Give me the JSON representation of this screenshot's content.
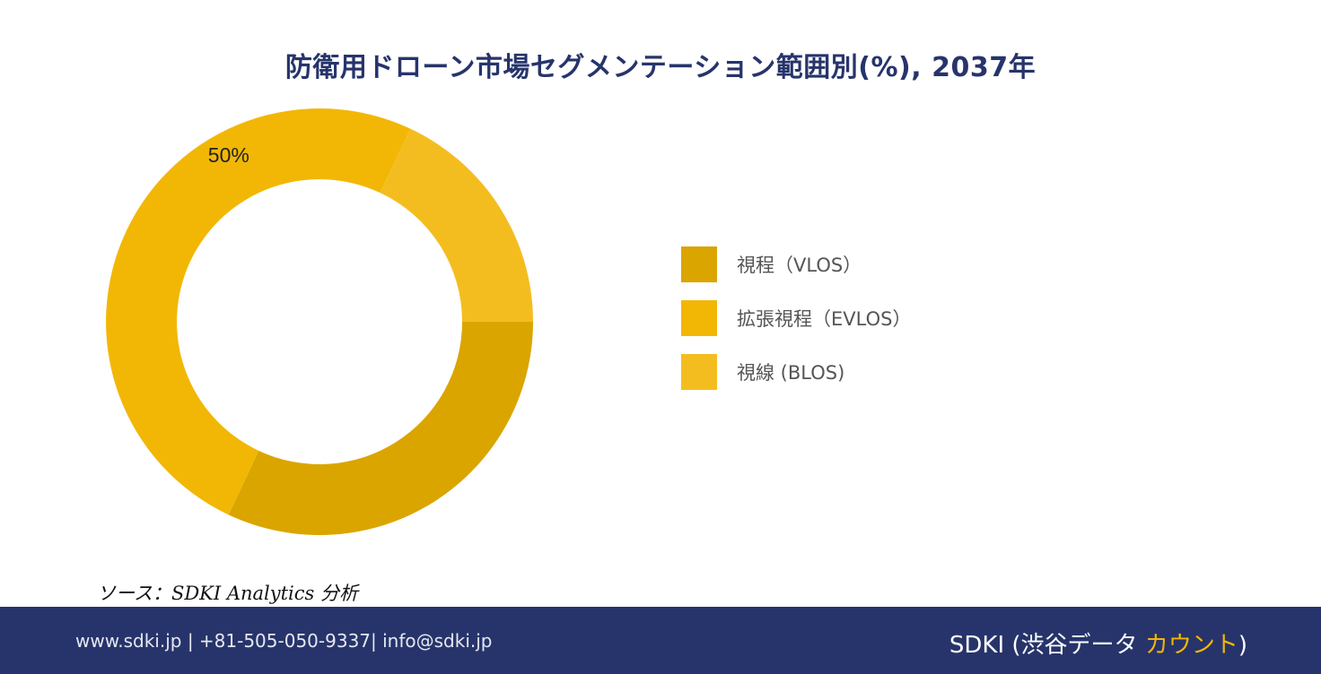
{
  "chart_data": {
    "type": "pie",
    "title": "防衛用ドローン市場セグメンテーション範囲別(%), 2037年",
    "categories": [
      "視程（VLOS）",
      "拡張視程（EVLOS）",
      "視線 (BLOS)"
    ],
    "values": [
      32,
      50,
      18
    ],
    "data_labels": [
      "",
      "50%",
      ""
    ],
    "colors": [
      "#dba500",
      "#f2b705",
      "#f4bd1f"
    ],
    "legend_position": "right"
  },
  "source": "ソース：SDKI Analytics 分析",
  "footer": {
    "contact": "www.sdki.jp | +81-505-050-9337| info@sdki.jp",
    "brand_main": "SDKI (渋谷データ ",
    "brand_accent": "カウント",
    "brand_close": ")"
  }
}
